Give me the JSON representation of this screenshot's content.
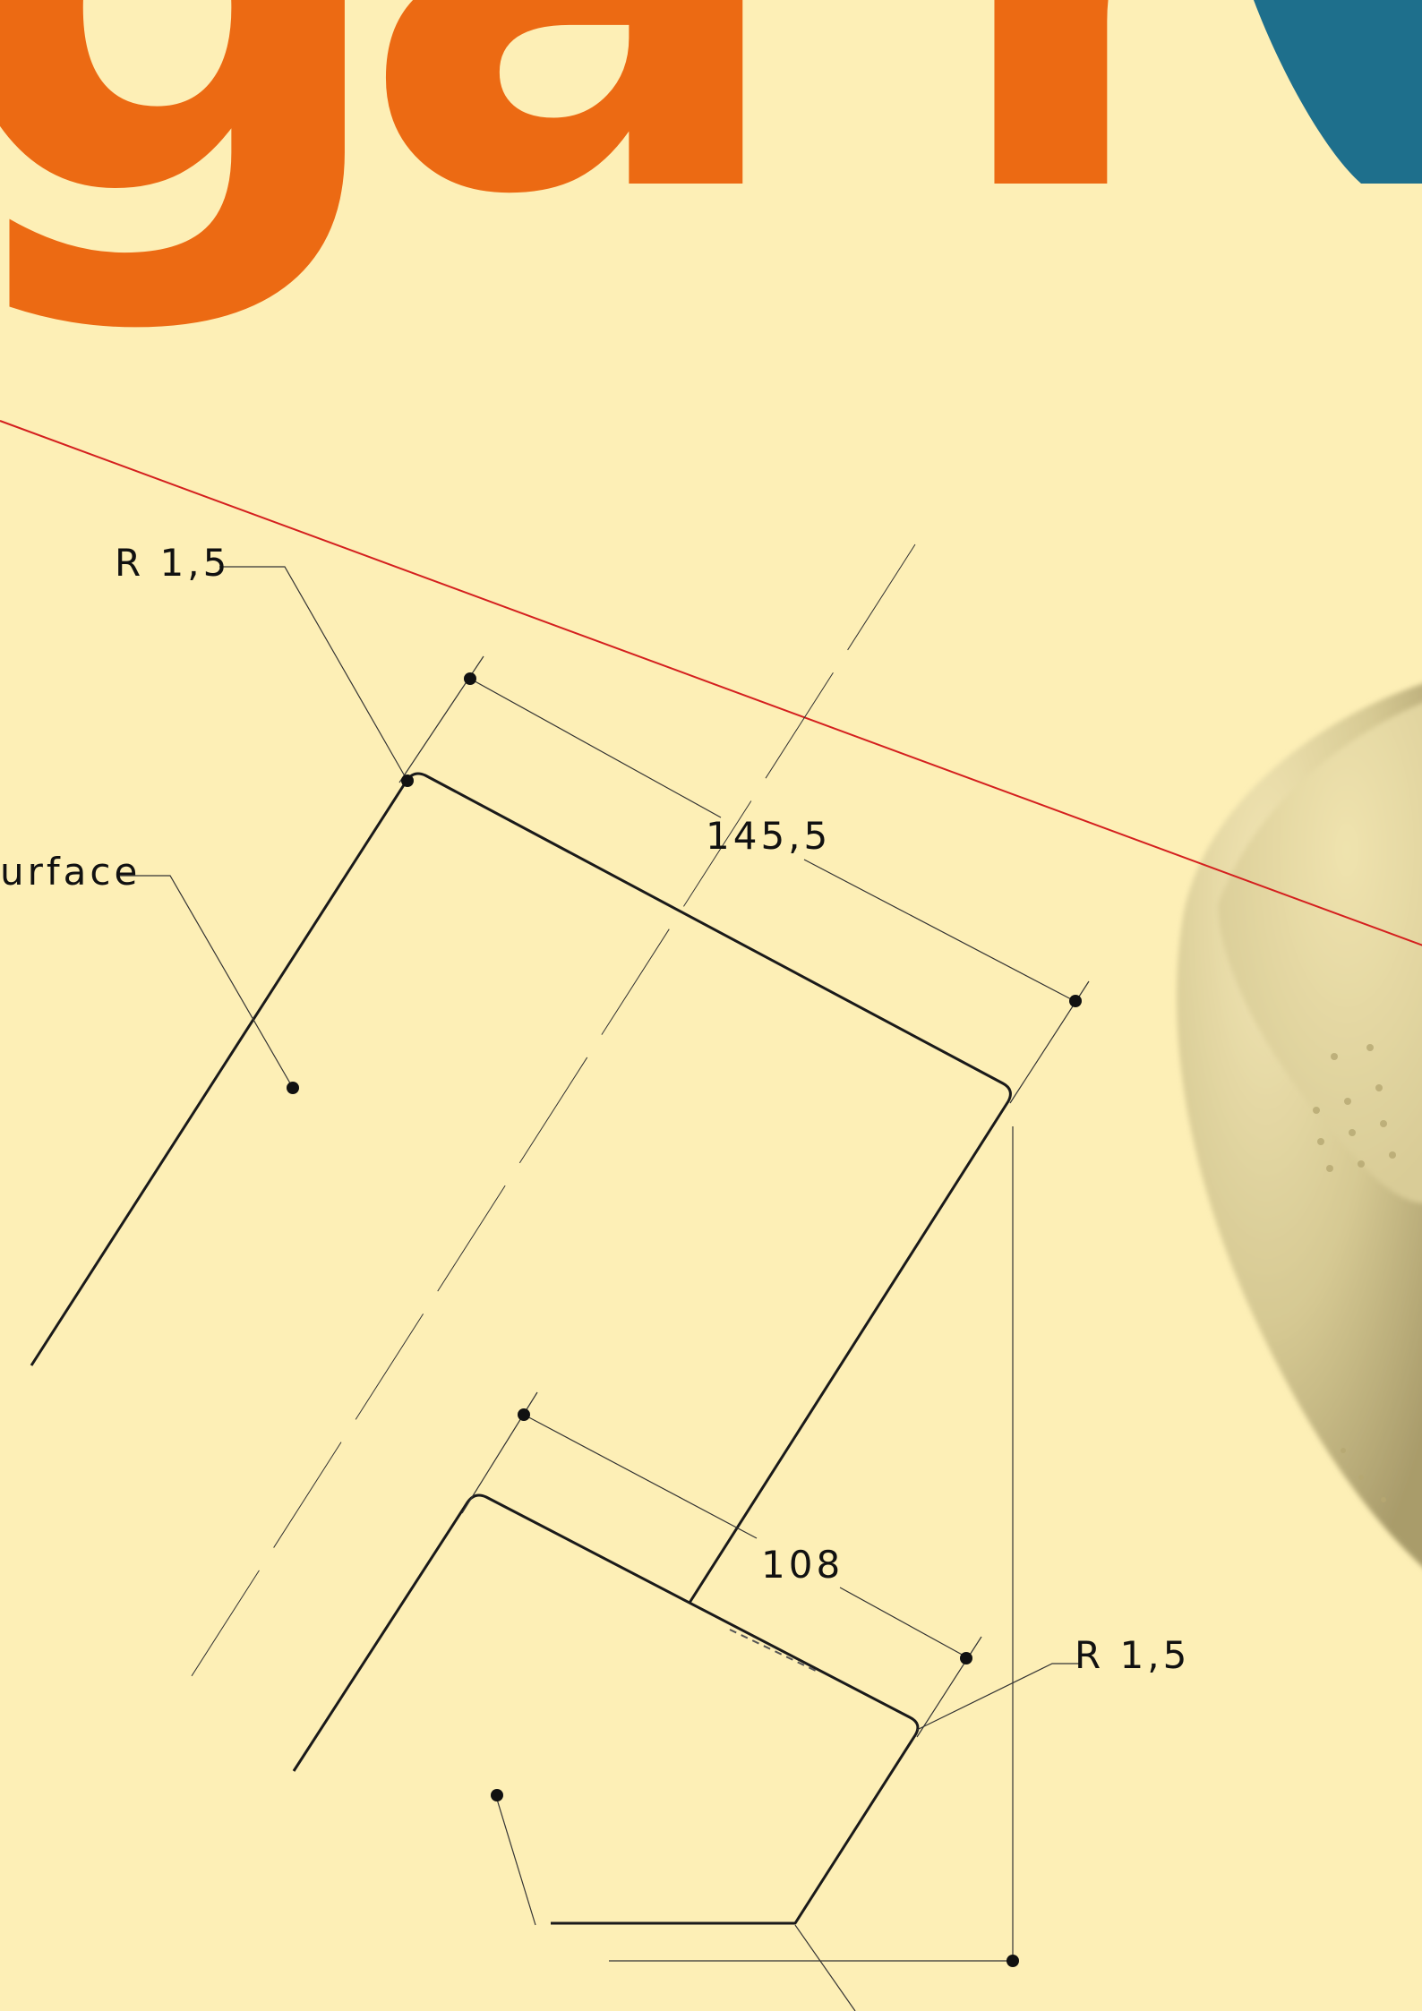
{
  "headline": {
    "letters": [
      "g",
      "a",
      "r"
    ],
    "colors": {
      "orange": "#EC6A13",
      "teal": "#1E6F8C"
    }
  },
  "drawing": {
    "radius_top": "R 1,5",
    "radius_bottom": "R 1,5",
    "surface_label": "urface",
    "dim_long": "145,5",
    "dim_short": "108"
  },
  "colors": {
    "background": "#FDEFB6",
    "line": "#1A1A1A",
    "red_line": "#D4201F",
    "bowl": "#CFC38E"
  }
}
